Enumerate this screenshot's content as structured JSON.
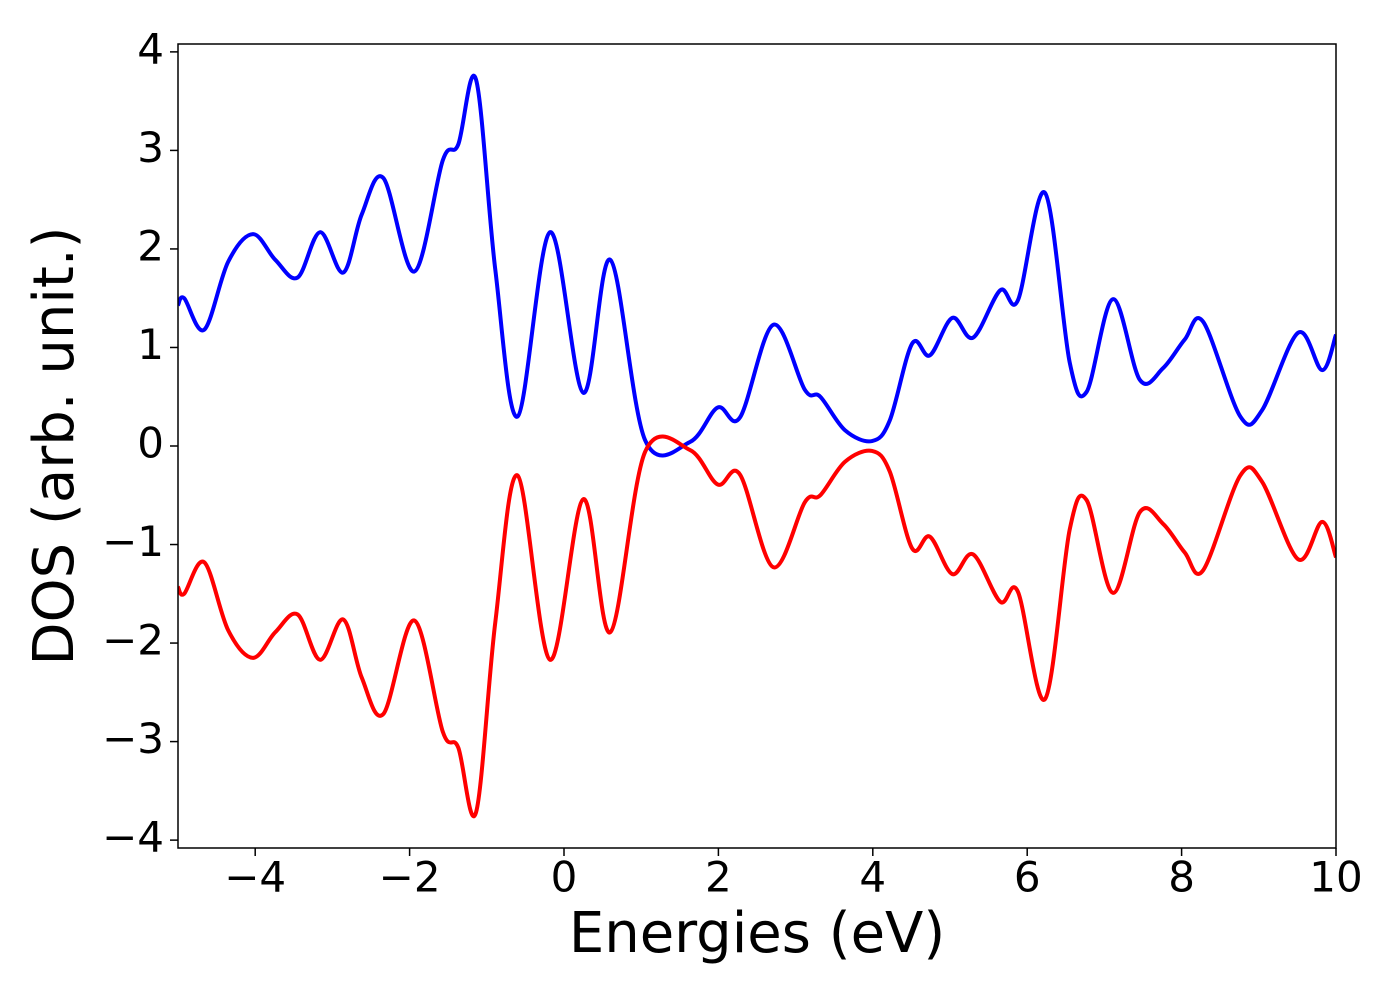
{
  "chart_data": {
    "type": "line",
    "x_label": "Energies (eV)",
    "y_label": "DOS (arb. unit.)",
    "x": [
      -5,
      -4.92,
      -4.66,
      -4.35,
      -4.03,
      -3.74,
      -3.45,
      -3.16,
      -2.86,
      -2.62,
      -2.34,
      -1.94,
      -1.57,
      -1.37,
      -1.14,
      -0.89,
      -0.6,
      -0.18,
      0.25,
      0.6,
      1.05,
      1.63,
      1.99,
      2.28,
      2.71,
      3.12,
      3.32,
      3.64,
      3.99,
      4.22,
      4.51,
      4.74,
      5.03,
      5.3,
      5.65,
      5.88,
      6.23,
      6.55,
      6.77,
      7.11,
      7.46,
      7.76,
      8.04,
      8.28,
      8.76,
      9.04,
      9.51,
      9.82,
      10
    ],
    "series": [
      {
        "color": "#0000ff",
        "values": [
          1.43,
          1.5,
          1.18,
          1.87,
          2.15,
          1.89,
          1.71,
          2.17,
          1.76,
          2.35,
          2.72,
          1.77,
          2.9,
          3.06,
          3.72,
          1.79,
          0.3,
          2.17,
          0.54,
          1.89,
          0.06,
          0.04,
          0.39,
          0.29,
          1.23,
          0.57,
          0.5,
          0.16,
          0.05,
          0.26,
          1.04,
          0.92,
          1.3,
          1.1,
          1.58,
          1.48,
          2.57,
          0.85,
          0.55,
          1.49,
          0.67,
          0.79,
          1.08,
          1.26,
          0.3,
          0.36,
          1.15,
          0.77,
          1.13
        ]
      },
      {
        "color": "#ff0000",
        "values": [
          -1.43,
          -1.5,
          -1.18,
          -1.87,
          -2.15,
          -1.89,
          -1.71,
          -2.17,
          -1.76,
          -2.35,
          -2.72,
          -1.77,
          -2.9,
          -3.06,
          -3.72,
          -1.79,
          -0.3,
          -2.17,
          -0.54,
          -1.89,
          -0.06,
          -0.04,
          -0.39,
          -0.29,
          -1.23,
          -0.57,
          -0.5,
          -0.16,
          -0.05,
          -0.26,
          -1.04,
          -0.92,
          -1.3,
          -1.1,
          -1.58,
          -1.48,
          -2.57,
          -0.85,
          -0.55,
          -1.49,
          -0.67,
          -0.79,
          -1.08,
          -1.26,
          -0.3,
          -0.36,
          -1.15,
          -0.77,
          -1.13
        ]
      }
    ],
    "xlim": [
      -5,
      10
    ],
    "xticks": [
      {
        "value": -4,
        "label": "−4"
      },
      {
        "value": -2,
        "label": "−2"
      },
      0,
      2,
      4,
      6,
      8,
      10
    ],
    "ylim": [
      -4.08,
      4.08
    ],
    "yticks": [
      {
        "value": -4,
        "label": "−4"
      },
      {
        "value": -3,
        "label": "−3"
      },
      {
        "value": -2,
        "label": "−2"
      },
      {
        "value": -1,
        "label": "−1"
      },
      0,
      1,
      2,
      3,
      4
    ],
    "grid": false
  }
}
